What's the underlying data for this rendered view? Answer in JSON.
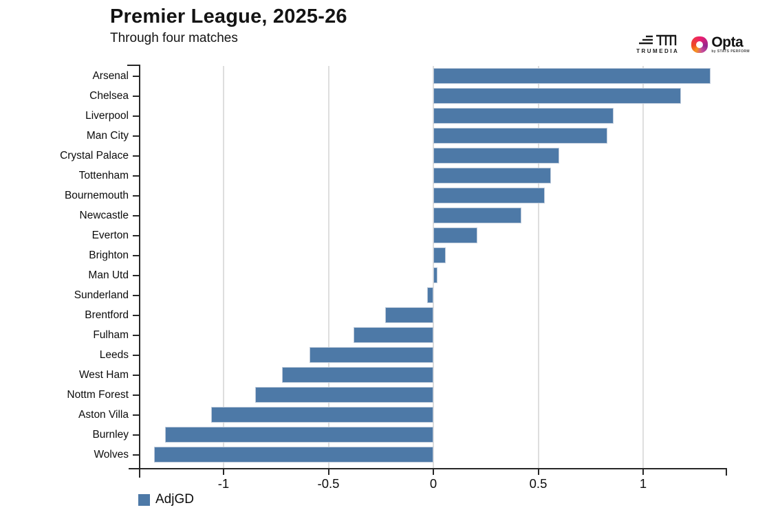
{
  "header": {
    "title": "Premier League, 2025-26",
    "subtitle": "Through four matches",
    "logos": {
      "trumedia_label": "TRUMEDIA",
      "opta_label": "Opta",
      "opta_sub": "by STATS PERFORM"
    }
  },
  "legend": {
    "label": "AdjGD"
  },
  "colors": {
    "bar": "#4d79a7",
    "bar_border": "#bcc9da",
    "grid": "#dedede",
    "axis": "#262626"
  },
  "chart_data": {
    "type": "bar",
    "orientation": "horizontal",
    "title": "Premier League, 2025-26",
    "subtitle": "Through four matches",
    "series_name": "AdjGD",
    "categories": [
      "Arsenal",
      "Chelsea",
      "Liverpool",
      "Man City",
      "Crystal Palace",
      "Tottenham",
      "Bournemouth",
      "Newcastle",
      "Everton",
      "Brighton",
      "Man Utd",
      "Sunderland",
      "Brentford",
      "Fulham",
      "Leeds",
      "West Ham",
      "Nottm Forest",
      "Aston Villa",
      "Burnley",
      "Wolves"
    ],
    "values": [
      1.32,
      1.18,
      0.86,
      0.83,
      0.6,
      0.56,
      0.53,
      0.42,
      0.21,
      0.06,
      0.02,
      -0.03,
      -0.23,
      -0.38,
      -0.59,
      -0.72,
      -0.85,
      -1.06,
      -1.28,
      -1.33
    ],
    "xlim": [
      -1.4,
      1.4
    ],
    "x_ticks": [
      -1,
      -0.5,
      0,
      0.5,
      1
    ],
    "x_tick_labels": [
      "-1",
      "-0.5",
      "0",
      "0.5",
      "1"
    ],
    "grid": true,
    "legend_position": "bottom-left"
  }
}
